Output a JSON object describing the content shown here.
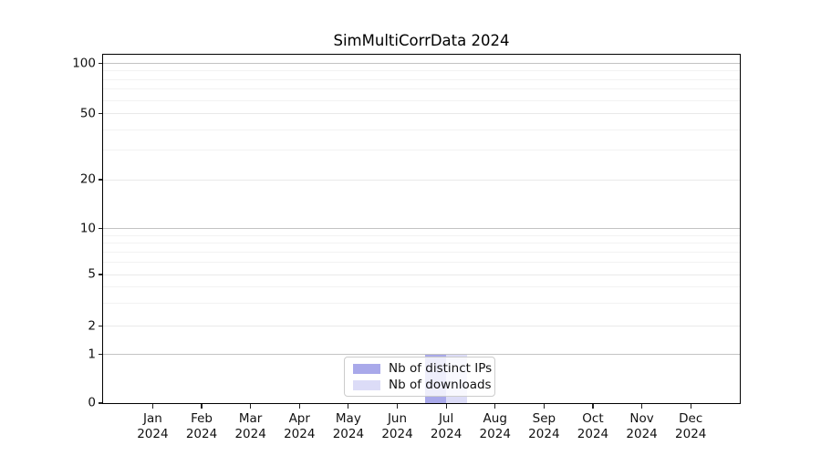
{
  "chart_data": {
    "type": "bar",
    "title": "SimMultiCorrData 2024",
    "x": {
      "months": [
        "Jan",
        "Feb",
        "Mar",
        "Apr",
        "May",
        "Jun",
        "Jul",
        "Aug",
        "Sep",
        "Oct",
        "Nov",
        "Dec"
      ],
      "year": "2024"
    },
    "series": [
      {
        "name": "Nb of distinct IPs",
        "color": "#a9a9ea",
        "values": [
          0,
          0,
          0,
          0,
          0,
          0,
          1,
          0,
          0,
          0,
          0,
          0
        ]
      },
      {
        "name": "Nb of downloads",
        "color": "#dcdcf7",
        "values": [
          0,
          0,
          0,
          0,
          0,
          0,
          1,
          0,
          0,
          0,
          0,
          0
        ]
      }
    ],
    "y_axis": {
      "ticks": [
        0,
        1,
        2,
        5,
        10,
        20,
        50,
        100
      ],
      "scale": "log-like with zero baseline",
      "minor_gridlines": [
        3,
        4,
        6,
        7,
        8,
        9,
        30,
        40,
        60,
        70,
        80,
        90
      ],
      "ylim": [
        0,
        105
      ]
    },
    "grid": "horizontal major + minor",
    "legend_position": "lower center inside plot"
  }
}
